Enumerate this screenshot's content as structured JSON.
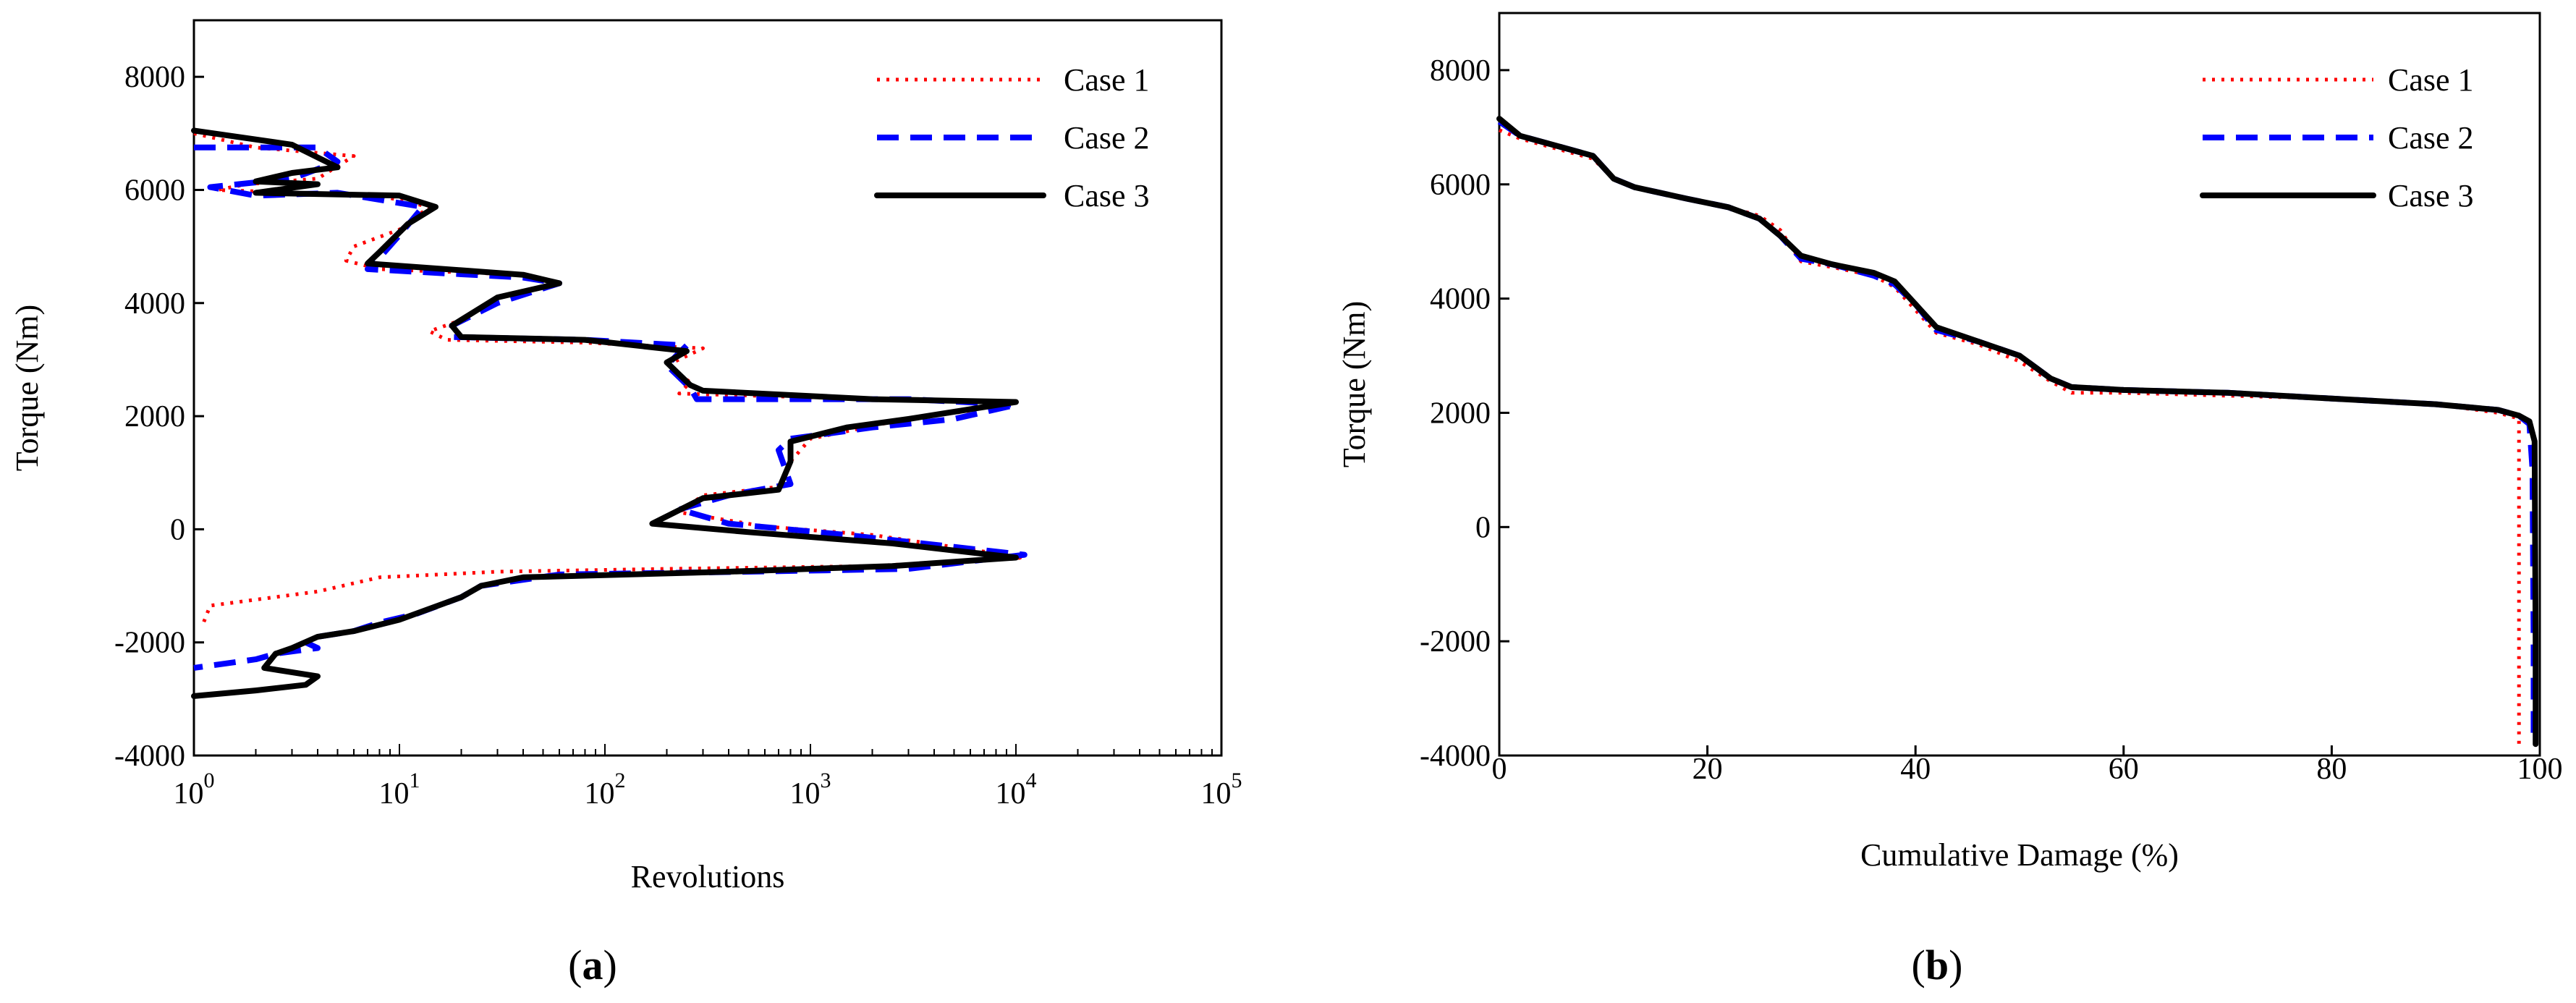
{
  "panels": [
    {
      "id": "a",
      "panel_label_open": "(",
      "panel_label_letter": "a",
      "panel_label_close": ")"
    },
    {
      "id": "b",
      "panel_label_open": "(",
      "panel_label_letter": "b",
      "panel_label_close": ")"
    }
  ],
  "chart_data": [
    {
      "type": "line",
      "xlabel": "Revolutions",
      "ylabel": "Torque (Nm)",
      "xscale": "log",
      "xlim": [
        1,
        100000
      ],
      "ylim": [
        -4000,
        9000
      ],
      "x_ticks": [
        {
          "value": 1,
          "base": "10",
          "exp": "0"
        },
        {
          "value": 10,
          "base": "10",
          "exp": "1"
        },
        {
          "value": 100,
          "base": "10",
          "exp": "2"
        },
        {
          "value": 1000,
          "base": "10",
          "exp": "3"
        },
        {
          "value": 10000,
          "base": "10",
          "exp": "4"
        },
        {
          "value": 100000,
          "base": "10",
          "exp": "5"
        }
      ],
      "y_ticks": [
        {
          "value": 8000,
          "label": "8000"
        },
        {
          "value": 6000,
          "label": "6000"
        },
        {
          "value": 4000,
          "label": "4000"
        },
        {
          "value": 2000,
          "label": "2000"
        },
        {
          "value": 0,
          "label": "0"
        },
        {
          "value": -2000,
          "label": "-2000"
        },
        {
          "value": -4000,
          "label": "-4000"
        }
      ],
      "legend_position": "top-right",
      "series": [
        {
          "name": "Case 1",
          "color": "#ff0000",
          "style": "dotted",
          "points": [
            [
              1,
              7000
            ],
            [
              2,
              6750
            ],
            [
              6,
              6600
            ],
            [
              4,
              6200
            ],
            [
              1.8,
              6100
            ],
            [
              1.3,
              6000
            ],
            [
              8,
              5900
            ],
            [
              14,
              5700
            ],
            [
              10,
              5300
            ],
            [
              6,
              5000
            ],
            [
              5.5,
              4750
            ],
            [
              8,
              4600
            ],
            [
              40,
              4500
            ],
            [
              60,
              4350
            ],
            [
              30,
              4100
            ],
            [
              20,
              3700
            ],
            [
              14,
              3500
            ],
            [
              17,
              3350
            ],
            [
              80,
              3300
            ],
            [
              300,
              3200
            ],
            [
              200,
              2900
            ],
            [
              260,
              2600
            ],
            [
              230,
              2400
            ],
            [
              2000,
              2300
            ],
            [
              9000,
              2250
            ],
            [
              6000,
              2100
            ],
            [
              2500,
              1900
            ],
            [
              1000,
              1600
            ],
            [
              800,
              1200
            ],
            [
              700,
              750
            ],
            [
              300,
              600
            ],
            [
              230,
              300
            ],
            [
              600,
              50
            ],
            [
              2000,
              -100
            ],
            [
              11000,
              -500
            ],
            [
              2000,
              -650
            ],
            [
              200,
              -700
            ],
            [
              30,
              -750
            ],
            [
              8,
              -850
            ],
            [
              4,
              -1100
            ],
            [
              1.2,
              -1350
            ],
            [
              1.1,
              -1700
            ]
          ]
        },
        {
          "name": "Case 2",
          "color": "#0000ff",
          "style": "dashed",
          "points": [
            [
              1,
              6750
            ],
            [
              4,
              6750
            ],
            [
              5,
              6500
            ],
            [
              3,
              6200
            ],
            [
              1.2,
              6050
            ],
            [
              2,
              5900
            ],
            [
              5,
              5950
            ],
            [
              13,
              5700
            ],
            [
              10,
              5200
            ],
            [
              8,
              4800
            ],
            [
              7,
              4600
            ],
            [
              40,
              4450
            ],
            [
              60,
              4350
            ],
            [
              30,
              4000
            ],
            [
              18,
              3600
            ],
            [
              18,
              3400
            ],
            [
              80,
              3350
            ],
            [
              250,
              3250
            ],
            [
              200,
              2900
            ],
            [
              260,
              2500
            ],
            [
              280,
              2300
            ],
            [
              3000,
              2300
            ],
            [
              10000,
              2200
            ],
            [
              5000,
              1950
            ],
            [
              2000,
              1800
            ],
            [
              800,
              1600
            ],
            [
              700,
              1400
            ],
            [
              800,
              800
            ],
            [
              400,
              600
            ],
            [
              230,
              350
            ],
            [
              400,
              100
            ],
            [
              1500,
              -100
            ],
            [
              11000,
              -450
            ],
            [
              3000,
              -700
            ],
            [
              500,
              -750
            ],
            [
              60,
              -800
            ],
            [
              25,
              -1000
            ],
            [
              20,
              -1200
            ],
            [
              12,
              -1500
            ],
            [
              8,
              -1650
            ],
            [
              6,
              -1800
            ],
            [
              4,
              -1900
            ],
            [
              3.5,
              -2000
            ],
            [
              4,
              -2100
            ],
            [
              2.5,
              -2200
            ],
            [
              2,
              -2300
            ],
            [
              1,
              -2450
            ]
          ]
        },
        {
          "name": "Case 3",
          "color": "#000000",
          "style": "solid",
          "points": [
            [
              1,
              7050
            ],
            [
              3,
              6800
            ],
            [
              5,
              6400
            ],
            [
              3,
              6300
            ],
            [
              2,
              6150
            ],
            [
              4,
              6100
            ],
            [
              2,
              5950
            ],
            [
              10,
              5900
            ],
            [
              15,
              5700
            ],
            [
              11,
              5400
            ],
            [
              8,
              4900
            ],
            [
              7,
              4700
            ],
            [
              40,
              4500
            ],
            [
              60,
              4350
            ],
            [
              30,
              4100
            ],
            [
              18,
              3600
            ],
            [
              20,
              3400
            ],
            [
              80,
              3350
            ],
            [
              250,
              3150
            ],
            [
              200,
              2950
            ],
            [
              260,
              2550
            ],
            [
              300,
              2450
            ],
            [
              2000,
              2300
            ],
            [
              10000,
              2250
            ],
            [
              3000,
              1950
            ],
            [
              1500,
              1800
            ],
            [
              800,
              1550
            ],
            [
              800,
              1200
            ],
            [
              700,
              700
            ],
            [
              300,
              550
            ],
            [
              170,
              100
            ],
            [
              500,
              -50
            ],
            [
              2500,
              -250
            ],
            [
              10000,
              -500
            ],
            [
              2500,
              -650
            ],
            [
              400,
              -750
            ],
            [
              40,
              -850
            ],
            [
              25,
              -1000
            ],
            [
              20,
              -1200
            ],
            [
              10,
              -1600
            ],
            [
              6,
              -1800
            ],
            [
              4,
              -1900
            ],
            [
              3,
              -2100
            ],
            [
              2.5,
              -2200
            ],
            [
              2.2,
              -2450
            ],
            [
              4,
              -2600
            ],
            [
              3.5,
              -2750
            ],
            [
              2,
              -2850
            ],
            [
              1,
              -2950
            ]
          ]
        }
      ]
    },
    {
      "type": "line",
      "xlabel": "Cumulative Damage (%)",
      "ylabel": "Torque (Nm)",
      "xscale": "linear",
      "xlim": [
        0,
        100
      ],
      "ylim": [
        -4000,
        9000
      ],
      "x_ticks": [
        {
          "value": 0,
          "label": "0"
        },
        {
          "value": 20,
          "label": "20"
        },
        {
          "value": 40,
          "label": "40"
        },
        {
          "value": 60,
          "label": "60"
        },
        {
          "value": 80,
          "label": "80"
        },
        {
          "value": 100,
          "label": "100"
        }
      ],
      "y_ticks": [
        {
          "value": 8000,
          "label": "8000"
        },
        {
          "value": 6000,
          "label": "6000"
        },
        {
          "value": 4000,
          "label": "4000"
        },
        {
          "value": 2000,
          "label": "2000"
        },
        {
          "value": 0,
          "label": "0"
        },
        {
          "value": -2000,
          "label": "-2000"
        },
        {
          "value": -4000,
          "label": "-4000"
        }
      ],
      "legend_position": "top-right",
      "series": [
        {
          "name": "Case 1",
          "color": "#ff0000",
          "style": "dotted",
          "points": [
            [
              0,
              6950
            ],
            [
              2,
              6800
            ],
            [
              5,
              6650
            ],
            [
              9,
              6450
            ],
            [
              11,
              6100
            ],
            [
              13,
              5950
            ],
            [
              18,
              5750
            ],
            [
              22,
              5600
            ],
            [
              25,
              5450
            ],
            [
              27,
              5200
            ],
            [
              29,
              4650
            ],
            [
              32,
              4550
            ],
            [
              36,
              4400
            ],
            [
              38,
              4200
            ],
            [
              40,
              3800
            ],
            [
              42,
              3400
            ],
            [
              46,
              3200
            ],
            [
              50,
              2900
            ],
            [
              53,
              2550
            ],
            [
              55,
              2350
            ],
            [
              60,
              2350
            ],
            [
              70,
              2300
            ],
            [
              80,
              2250
            ],
            [
              90,
              2150
            ],
            [
              96,
              2000
            ],
            [
              98,
              1900
            ],
            [
              98,
              1000
            ],
            [
              98,
              -2000
            ],
            [
              98,
              -3800
            ]
          ]
        },
        {
          "name": "Case 2",
          "color": "#0000ff",
          "style": "dashed",
          "points": [
            [
              0,
              7100
            ],
            [
              2,
              6850
            ],
            [
              5,
              6700
            ],
            [
              9,
              6500
            ],
            [
              11,
              6100
            ],
            [
              13,
              5950
            ],
            [
              18,
              5750
            ],
            [
              22,
              5600
            ],
            [
              25,
              5400
            ],
            [
              27,
              5100
            ],
            [
              29,
              4700
            ],
            [
              32,
              4600
            ],
            [
              36,
              4400
            ],
            [
              38,
              4250
            ],
            [
              40,
              3900
            ],
            [
              42,
              3450
            ],
            [
              46,
              3250
            ],
            [
              50,
              3000
            ],
            [
              53,
              2600
            ],
            [
              55,
              2450
            ],
            [
              60,
              2400
            ],
            [
              70,
              2350
            ],
            [
              80,
              2250
            ],
            [
              90,
              2150
            ],
            [
              96,
              2050
            ],
            [
              98,
              1950
            ],
            [
              99,
              1800
            ],
            [
              99.3,
              1000
            ],
            [
              99.4,
              -2000
            ],
            [
              99.4,
              -3800
            ]
          ]
        },
        {
          "name": "Case 3",
          "color": "#000000",
          "style": "solid",
          "points": [
            [
              0,
              7150
            ],
            [
              2,
              6850
            ],
            [
              5,
              6700
            ],
            [
              9,
              6500
            ],
            [
              11,
              6100
            ],
            [
              13,
              5950
            ],
            [
              18,
              5750
            ],
            [
              22,
              5600
            ],
            [
              25,
              5400
            ],
            [
              27,
              5100
            ],
            [
              29,
              4750
            ],
            [
              32,
              4600
            ],
            [
              36,
              4450
            ],
            [
              38,
              4300
            ],
            [
              40,
              3900
            ],
            [
              42,
              3500
            ],
            [
              46,
              3250
            ],
            [
              50,
              3000
            ],
            [
              53,
              2600
            ],
            [
              55,
              2450
            ],
            [
              60,
              2400
            ],
            [
              70,
              2350
            ],
            [
              80,
              2250
            ],
            [
              90,
              2150
            ],
            [
              96,
              2050
            ],
            [
              98,
              1950
            ],
            [
              99,
              1850
            ],
            [
              99.5,
              1500
            ],
            [
              99.6,
              -2000
            ],
            [
              99.6,
              -3800
            ]
          ]
        }
      ]
    }
  ]
}
